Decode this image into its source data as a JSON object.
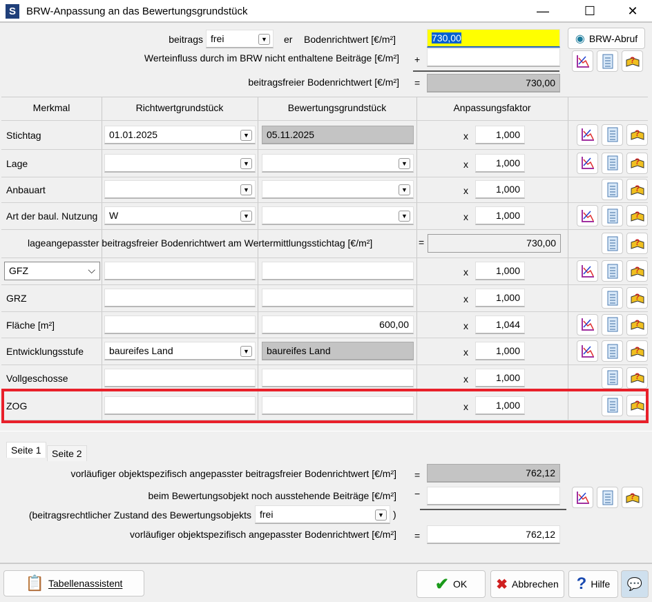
{
  "window": {
    "title": "BRW-Anpassung an das Bewertungsgrundstück",
    "logo": "S",
    "min": "—",
    "max": "☐",
    "close": "✕"
  },
  "top": {
    "beitrags_label": "beitrags",
    "beitrags_value": "frei",
    "er_label": "er",
    "brw_label": "Bodenrichtwert [€/m²]",
    "brw_value": "730,00",
    "brw_abruf": "BRW-Abruf",
    "werteinfluss_label": "Werteinfluss durch im BRW nicht enthaltene Beiträge [€/m²]",
    "plus": "+",
    "werteinfluss_value": "",
    "beitragsfrei_label": "beitragsfreier Bodenrichtwert [€/m²]",
    "eq": "=",
    "beitragsfrei_value": "730,00"
  },
  "table": {
    "headers": [
      "Merkmal",
      "Richtwertgrundstück",
      "Bewertungsgrundstück",
      "Anpassungsfaktor"
    ],
    "rows": [
      {
        "label": "Stichtag",
        "rw": "01.01.2025",
        "rw_dd": true,
        "bw": "05.11.2025",
        "bw_gray": true,
        "op": "x",
        "factor": "1,000",
        "icons": [
          "chart",
          "list",
          "book"
        ]
      },
      {
        "label": "Lage",
        "rw": "",
        "rw_dd": true,
        "bw": "",
        "bw_dd": true,
        "op": "x",
        "factor": "1,000",
        "icons": [
          "chart",
          "list",
          "book"
        ]
      },
      {
        "label": "Anbauart",
        "rw": "",
        "rw_dd": true,
        "bw": "",
        "bw_dd": true,
        "op": "x",
        "factor": "1,000",
        "icons": [
          "list",
          "book"
        ]
      },
      {
        "label": "Art der baul. Nutzung",
        "rw": "W",
        "rw_dd": true,
        "bw": "",
        "bw_dd": true,
        "op": "x",
        "factor": "1,000",
        "icons": [
          "chart",
          "list",
          "book"
        ]
      },
      {
        "special": true,
        "text": "lageangepasster beitragsfreier Bodenrichtwert am Wertermittlungsstichtag [€/m²]",
        "op": "=",
        "value": "730,00",
        "icons": [
          "list",
          "book"
        ]
      },
      {
        "label": "GFZ",
        "label_select": true,
        "rw": "",
        "bw": "",
        "op": "x",
        "factor": "1,000",
        "icons": [
          "chart",
          "list",
          "book"
        ]
      },
      {
        "label": "GRZ",
        "rw": "",
        "bw": "",
        "op": "x",
        "factor": "1,000",
        "icons": [
          "list",
          "book"
        ]
      },
      {
        "label": "Fläche [m²]",
        "rw": "",
        "bw": "600,00",
        "op": "x",
        "factor": "1,044",
        "icons": [
          "chart",
          "list",
          "book"
        ]
      },
      {
        "label": "Entwicklungsstufe",
        "rw": "baureifes Land",
        "rw_dd": true,
        "bw": "baureifes Land",
        "bw_gray": true,
        "op": "x",
        "factor": "1,000",
        "icons": [
          "chart",
          "list",
          "book"
        ]
      },
      {
        "label": "Vollgeschosse",
        "rw": "",
        "bw": "",
        "op": "x",
        "factor": "1,000",
        "icons": [
          "list",
          "book"
        ]
      },
      {
        "label": "ZOG",
        "rw": "",
        "bw": "",
        "op": "x",
        "factor": "1,000",
        "icons": [
          "list",
          "book"
        ],
        "highlight": true
      }
    ]
  },
  "highlight_color": "#e8202a",
  "tabs": [
    "Seite 1",
    "Seite 2"
  ],
  "bottom": {
    "vorl_label": "vorläufiger objektspezifisch angepasster beitragsfreier Bodenrichtwert [€/m²]",
    "eq": "=",
    "vorl_value": "762,12",
    "ausstehend_label": "beim Bewertungsobjekt noch ausstehende Beiträge [€/m²]",
    "minus": "−",
    "ausstehend_value": "",
    "zustand_label": "(beitragsrechtlicher Zustand des Bewertungsobjekts",
    "zustand_value": "frei",
    "zustand_close": ")",
    "final_label": "vorläufiger objektspezifisch angepasster Bodenrichtwert [€/m²]",
    "final_value": "762,12"
  },
  "footer": {
    "tabellenassistent": "Tabellenassistent",
    "ok": "OK",
    "abbrechen": "Abbrechen",
    "hilfe": "Hilfe"
  }
}
